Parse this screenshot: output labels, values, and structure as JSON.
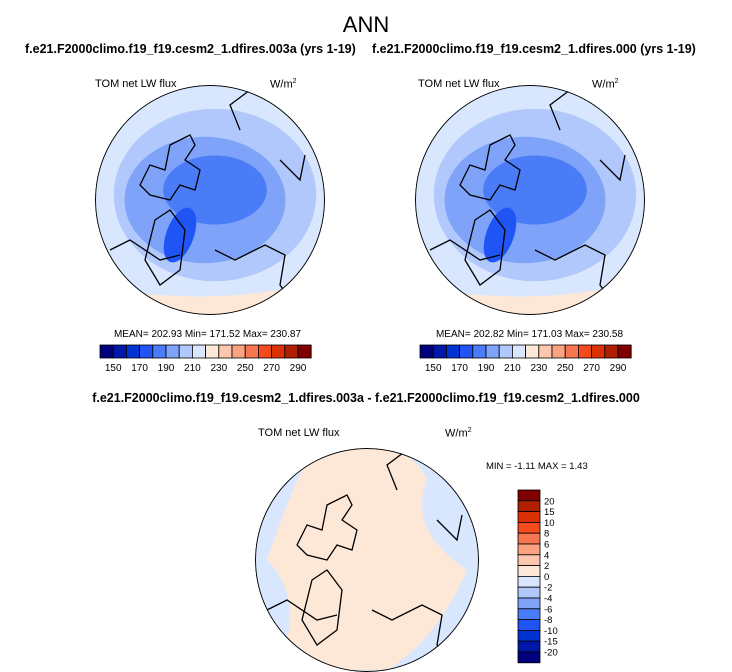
{
  "title": "ANN",
  "panels": [
    {
      "case": "f.e21.F2000climo.f19_f19.cesm2_1.dfires.003a (yrs 1-19)",
      "variable": "TOM net LW flux",
      "units": "W/m",
      "units_sup": "2",
      "stats": "MEAN= 202.93  Min= 171.52  Max= 230.87"
    },
    {
      "case": "f.e21.F2000climo.f19_f19.cesm2_1.dfires.000 (yrs 1-19)",
      "variable": "TOM net LW flux",
      "units": "W/m",
      "units_sup": "2",
      "stats": "MEAN= 202.82  Min= 171.03  Max= 230.58"
    }
  ],
  "diff": {
    "title": "f.e21.F2000climo.f19_f19.cesm2_1.dfires.003a - f.e21.F2000climo.f19_f19.cesm2_1.dfires.000",
    "variable": "TOM net LW flux",
    "units": "W/m",
    "units_sup": "2",
    "stats": "MIN =  -1.11 MAX =   1.43"
  },
  "colorbar_main": {
    "labels": [
      "150",
      "170",
      "190",
      "210",
      "230",
      "250",
      "270",
      "290"
    ],
    "levels": [
      150,
      160,
      170,
      180,
      190,
      200,
      210,
      220,
      230,
      240,
      250,
      260,
      270,
      280,
      290
    ]
  },
  "colorbar_diff": {
    "labels": [
      "20",
      "15",
      "10",
      "8",
      "6",
      "4",
      "2",
      "0",
      "-2",
      "-4",
      "-6",
      "-8",
      "-10",
      "-15",
      "-20"
    ]
  },
  "colors": [
    "#00007f",
    "#0018a8",
    "#0032d0",
    "#1f55f5",
    "#4a7cf7",
    "#7fa3f9",
    "#b0c8fb",
    "#d8e7fd",
    "#fde8d8",
    "#fcc7ad",
    "#fba381",
    "#f87650",
    "#f5491e",
    "#dc3106",
    "#b01f00",
    "#800000"
  ]
}
